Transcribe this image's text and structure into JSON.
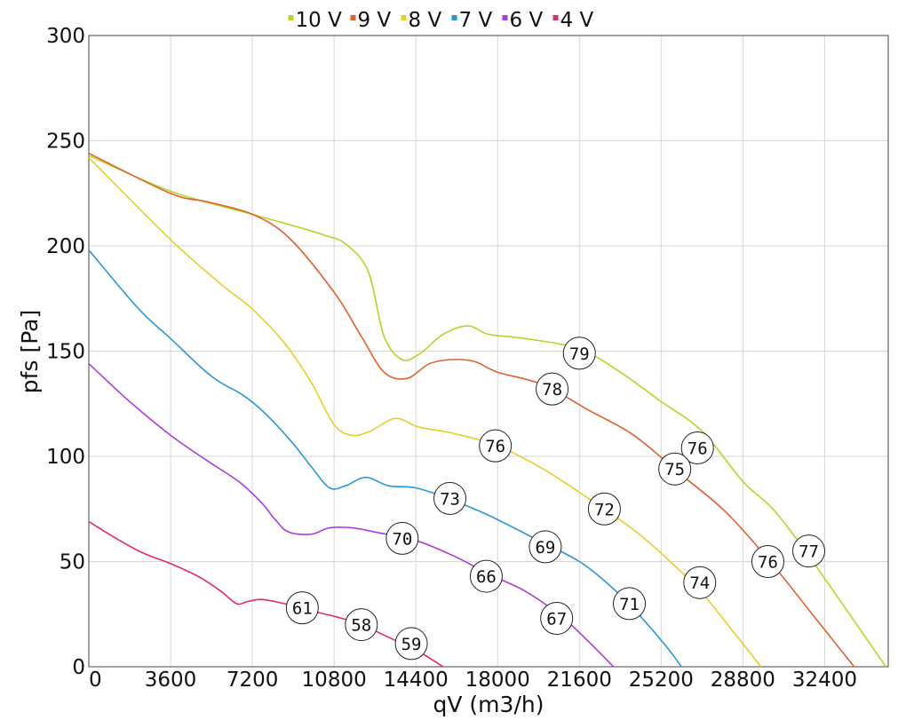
{
  "chart_data": {
    "type": "line",
    "xlabel": "qV (m3/h)",
    "ylabel": "pfs [Pa]",
    "xlim": [
      0,
      35200
    ],
    "ylim": [
      0,
      300
    ],
    "x_ticks": [
      0,
      3600,
      7200,
      10800,
      14400,
      18000,
      21600,
      25200,
      28800,
      32400
    ],
    "y_ticks": [
      0,
      50,
      100,
      150,
      200,
      250,
      300
    ],
    "grid": true,
    "legend_position": "top-center",
    "series": [
      {
        "name": "10 V",
        "color": "#b5d626",
        "points": [
          [
            0,
            243
          ],
          [
            3600,
            226
          ],
          [
            7200,
            215
          ],
          [
            9200,
            209
          ],
          [
            10400,
            205
          ],
          [
            11300,
            201
          ],
          [
            12300,
            188
          ],
          [
            13000,
            157
          ],
          [
            13800,
            146
          ],
          [
            14600,
            149
          ],
          [
            15600,
            158
          ],
          [
            16700,
            162
          ],
          [
            17600,
            158
          ],
          [
            19200,
            156
          ],
          [
            21600,
            151
          ],
          [
            23400,
            140
          ],
          [
            25200,
            126
          ],
          [
            27000,
            112
          ],
          [
            28800,
            88
          ],
          [
            30200,
            74
          ],
          [
            32000,
            48
          ],
          [
            35100,
            0
          ]
        ],
        "labels": [
          {
            "text": "79",
            "x": 21600,
            "y": 149
          },
          {
            "text": "76",
            "x": 26800,
            "y": 104
          },
          {
            "text": "77",
            "x": 31700,
            "y": 55
          }
        ]
      },
      {
        "name": "9 V",
        "color": "#e2612c",
        "points": [
          [
            0,
            244
          ],
          [
            3600,
            225
          ],
          [
            5200,
            221
          ],
          [
            7200,
            215
          ],
          [
            8800,
            204
          ],
          [
            10800,
            178
          ],
          [
            12000,
            157
          ],
          [
            13000,
            140
          ],
          [
            14000,
            137
          ],
          [
            15000,
            144
          ],
          [
            16000,
            146
          ],
          [
            17000,
            145
          ],
          [
            18000,
            140
          ],
          [
            20000,
            134
          ],
          [
            22000,
            122
          ],
          [
            24000,
            110
          ],
          [
            26000,
            92
          ],
          [
            28000,
            74
          ],
          [
            30000,
            50
          ],
          [
            32000,
            23
          ],
          [
            33700,
            0
          ]
        ],
        "labels": [
          {
            "text": "78",
            "x": 20400,
            "y": 132
          },
          {
            "text": "75",
            "x": 25800,
            "y": 94
          },
          {
            "text": "76",
            "x": 29900,
            "y": 50
          }
        ]
      },
      {
        "name": "8 V",
        "color": "#e6d026",
        "points": [
          [
            0,
            242
          ],
          [
            3600,
            203
          ],
          [
            5800,
            182
          ],
          [
            7200,
            170
          ],
          [
            8600,
            154
          ],
          [
            9800,
            135
          ],
          [
            10800,
            115
          ],
          [
            11600,
            110
          ],
          [
            12400,
            112
          ],
          [
            13500,
            118
          ],
          [
            14500,
            114
          ],
          [
            16000,
            111
          ],
          [
            18000,
            105
          ],
          [
            20000,
            94
          ],
          [
            22000,
            80
          ],
          [
            24000,
            65
          ],
          [
            25600,
            50
          ],
          [
            27000,
            35
          ],
          [
            28500,
            15
          ],
          [
            29600,
            0
          ]
        ],
        "labels": [
          {
            "text": "76",
            "x": 17900,
            "y": 105
          },
          {
            "text": "72",
            "x": 22700,
            "y": 75
          },
          {
            "text": "74",
            "x": 26900,
            "y": 40
          }
        ]
      },
      {
        "name": "7 V",
        "color": "#2a97dc",
        "points": [
          [
            0,
            198
          ],
          [
            2200,
            170
          ],
          [
            3600,
            156
          ],
          [
            5400,
            138
          ],
          [
            6800,
            129
          ],
          [
            7800,
            120
          ],
          [
            9000,
            106
          ],
          [
            9800,
            95
          ],
          [
            10600,
            85
          ],
          [
            11300,
            86
          ],
          [
            12200,
            90
          ],
          [
            13200,
            86
          ],
          [
            14400,
            85
          ],
          [
            15800,
            80
          ],
          [
            17600,
            72
          ],
          [
            19800,
            60
          ],
          [
            21600,
            50
          ],
          [
            23000,
            38
          ],
          [
            24200,
            25
          ],
          [
            25400,
            10
          ],
          [
            26100,
            0
          ]
        ],
        "labels": [
          {
            "text": "73",
            "x": 15900,
            "y": 80
          },
          {
            "text": "69",
            "x": 20100,
            "y": 57
          },
          {
            "text": "71",
            "x": 23800,
            "y": 30
          }
        ]
      },
      {
        "name": "6 V",
        "color": "#ab3ce0",
        "points": [
          [
            0,
            144
          ],
          [
            1800,
            126
          ],
          [
            3600,
            110
          ],
          [
            5200,
            98
          ],
          [
            6600,
            88
          ],
          [
            7600,
            78
          ],
          [
            8200,
            70
          ],
          [
            8800,
            64
          ],
          [
            9800,
            63
          ],
          [
            10600,
            66
          ],
          [
            11600,
            66
          ],
          [
            12600,
            64
          ],
          [
            14400,
            60
          ],
          [
            16200,
            52
          ],
          [
            17600,
            44
          ],
          [
            19200,
            36
          ],
          [
            20800,
            24
          ],
          [
            22000,
            12
          ],
          [
            23100,
            0
          ]
        ],
        "labels": [
          {
            "text": "70",
            "x": 13800,
            "y": 61
          },
          {
            "text": "66",
            "x": 17500,
            "y": 43
          },
          {
            "text": "67",
            "x": 20600,
            "y": 23
          }
        ]
      },
      {
        "name": "4 V",
        "color": "#e4286d",
        "points": [
          [
            0,
            69
          ],
          [
            1200,
            61
          ],
          [
            2400,
            54
          ],
          [
            3600,
            49
          ],
          [
            4800,
            43
          ],
          [
            5800,
            36
          ],
          [
            6500,
            30
          ],
          [
            7000,
            31
          ],
          [
            7600,
            32
          ],
          [
            8600,
            30
          ],
          [
            9600,
            27
          ],
          [
            10800,
            24
          ],
          [
            12000,
            20
          ],
          [
            13200,
            14
          ],
          [
            14400,
            8
          ],
          [
            15600,
            0
          ]
        ],
        "labels": [
          {
            "text": "61",
            "x": 9400,
            "y": 28
          },
          {
            "text": "58",
            "x": 12000,
            "y": 20
          },
          {
            "text": "59",
            "x": 14200,
            "y": 11
          }
        ]
      }
    ]
  }
}
